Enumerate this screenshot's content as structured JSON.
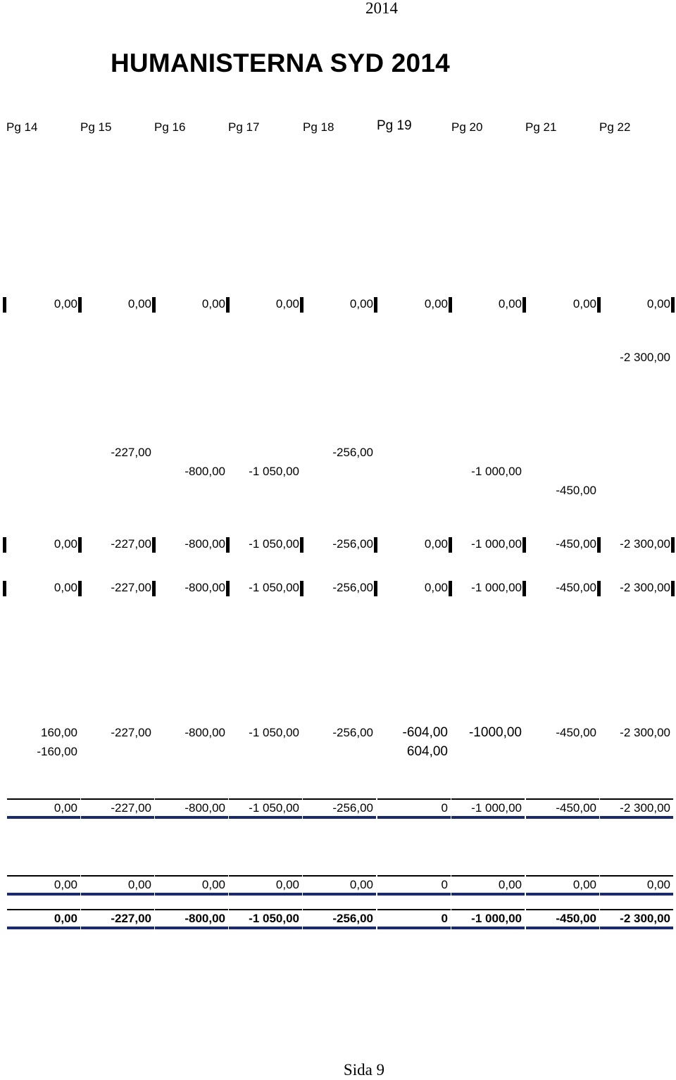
{
  "header": {
    "year": "2014",
    "title": "HUMANISTERNA SYD 2014"
  },
  "columns": [
    "Pg 14",
    "Pg 15",
    "Pg 16",
    "Pg 17",
    "Pg 18",
    "Pg 19",
    "Pg 20",
    "Pg 21",
    "Pg 22"
  ],
  "rows": {
    "zeros": [
      "0,00",
      "0,00",
      "0,00",
      "0,00",
      "0,00",
      "0,00",
      "0,00",
      "0,00",
      "0,00"
    ],
    "entry_a": [
      "",
      "",
      "",
      "",
      "",
      "",
      "",
      "",
      "-2 300,00"
    ],
    "entry_b": [
      "",
      "-227,00",
      "",
      "",
      "-256,00",
      "",
      "",
      "",
      ""
    ],
    "entry_c": [
      "",
      "",
      "-800,00",
      "-1 050,00",
      "",
      "",
      "-1 000,00",
      "",
      ""
    ],
    "entry_d": [
      "",
      "",
      "",
      "",
      "",
      "",
      "",
      "-450,00",
      ""
    ],
    "sum_1": [
      "0,00",
      "-227,00",
      "-800,00",
      "-1 050,00",
      "-256,00",
      "0,00",
      "-1 000,00",
      "-450,00",
      "-2 300,00"
    ],
    "sum_2": [
      "0,00",
      "-227,00",
      "-800,00",
      "-1 050,00",
      "-256,00",
      "0,00",
      "-1 000,00",
      "-450,00",
      "-2 300,00"
    ],
    "adj_1": [
      "160,00",
      "-227,00",
      "-800,00",
      "-1 050,00",
      "-256,00",
      "-604,00",
      "-1000,00",
      "-450,00",
      "-2 300,00"
    ],
    "adj_2": [
      "-160,00",
      "",
      "",
      "",
      "",
      "604,00",
      "",
      "",
      ""
    ],
    "total_1": [
      "0,00",
      "-227,00",
      "-800,00",
      "-1 050,00",
      "-256,00",
      "0",
      "-1 000,00",
      "-450,00",
      "-2 300,00"
    ],
    "total_2": [
      "0,00",
      "0,00",
      "0,00",
      "0,00",
      "0,00",
      "0",
      "0,00",
      "0,00",
      "0,00"
    ],
    "total_3": [
      "0,00",
      "-227,00",
      "-800,00",
      "-1 050,00",
      "-256,00",
      "0",
      "-1 000,00",
      "-450,00",
      "-2 300,00"
    ]
  },
  "footer": {
    "page": "Sida 9"
  }
}
